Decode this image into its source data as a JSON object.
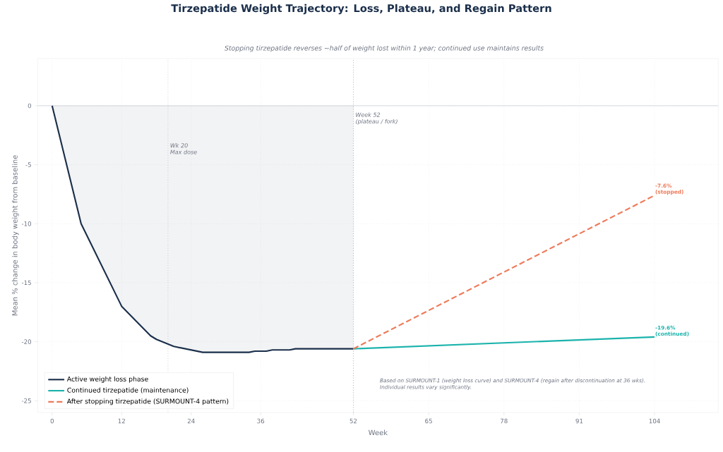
{
  "chart_data": {
    "type": "line",
    "title": "Tirzepatide Weight Trajectory: Loss, Plateau, and Regain Pattern",
    "subtitle": "Stopping tirzepatide reverses ~half of weight lost within 1 year; continued use maintains results",
    "xlabel": "Week",
    "ylabel": "Mean % change in body weight from baseline",
    "xlim": [
      -2.5,
      115
    ],
    "ylim": [
      -26,
      4
    ],
    "xticks": [
      0,
      12,
      24,
      36,
      52,
      65,
      78,
      91,
      104
    ],
    "yticks": [
      -25,
      -20,
      -15,
      -10,
      -5,
      0
    ],
    "grid": true,
    "legend": "bottom left",
    "marker": "none",
    "series": [
      {
        "name": "Active weight loss phase",
        "type": "area",
        "color": "#1b2f4b",
        "line_style": "solid",
        "x": [
          0,
          5,
          12,
          17,
          18,
          21,
          26,
          34,
          35,
          37,
          38,
          41,
          42,
          52
        ],
        "values": [
          0,
          -10.0,
          -17.0,
          -19.5,
          -19.8,
          -20.4,
          -20.9,
          -20.9,
          -20.8,
          -20.8,
          -20.7,
          -20.7,
          -20.6,
          -20.6
        ]
      },
      {
        "name": "Continued tirzepatide (maintenance)",
        "color": "#1ab3ac",
        "line_style": "solid",
        "x": [
          52,
          104
        ],
        "values": [
          -20.6,
          -19.6
        ]
      },
      {
        "name": "After stopping tirzepatide (SURMOUNT-4 pattern)",
        "color": "#ee7a5a",
        "line_style": "dashed",
        "x": [
          52,
          104
        ],
        "values": [
          -20.6,
          -7.6
        ]
      }
    ],
    "ref_lines": [
      {
        "axis": "y",
        "value": 0,
        "color": "#c8ced8",
        "line_style": "solid"
      },
      {
        "axis": "x",
        "value": 20,
        "label": "Wk 20 Max dose",
        "color": "#b8bcc4",
        "line_style": "dotted"
      },
      {
        "axis": "x",
        "value": 52,
        "label": "Week 52 (plateau / fork)",
        "color": "#8a8f99",
        "line_style": "dotted"
      }
    ],
    "annotations": [
      {
        "text": "-7.6% (stopped)",
        "x": 104,
        "y": -7.6
      },
      {
        "text": "-19.6% (continued)",
        "x": 104,
        "y": -19.6
      },
      "Based on SURMOUNT-1 (weight loss curve) and SURMOUNT-4 (regain after discontinuation at 36 wks). Individual results vary significantly."
    ]
  }
}
